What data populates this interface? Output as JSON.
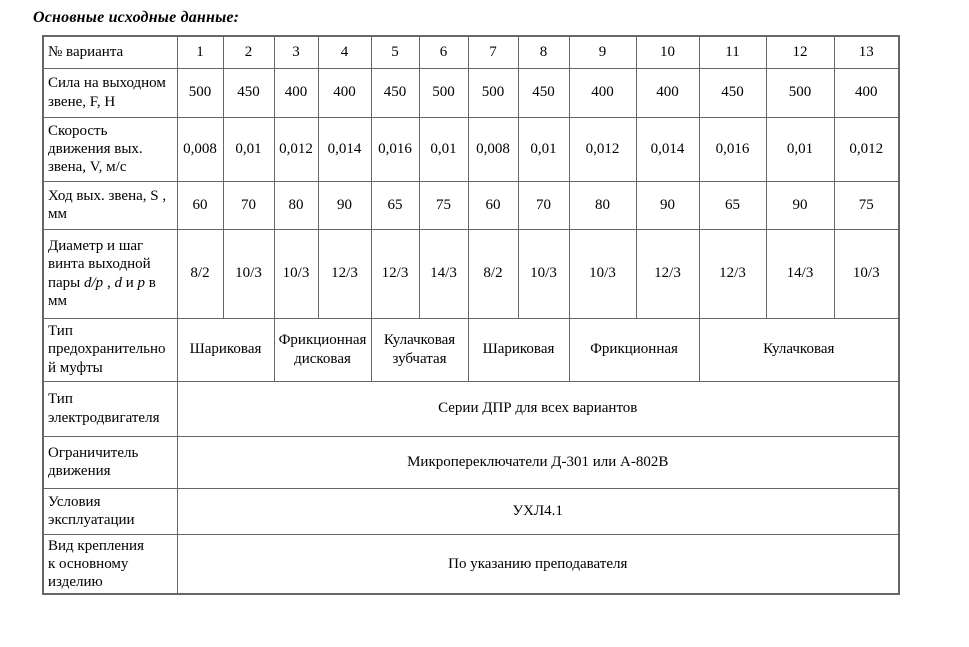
{
  "page": {
    "title": "Основные исходные данные:"
  },
  "table": {
    "rows": [
      {
        "label": "№ варианта",
        "cells": [
          {
            "text": "1"
          },
          {
            "text": "2"
          },
          {
            "text": "3"
          },
          {
            "text": "4"
          },
          {
            "text": "5"
          },
          {
            "text": "6"
          },
          {
            "text": "7"
          },
          {
            "text": "8"
          },
          {
            "text": "9"
          },
          {
            "text": "10"
          },
          {
            "text": "11"
          },
          {
            "text": "12"
          },
          {
            "text": "13"
          }
        ]
      },
      {
        "label": "Сила на выходном\nзвене, F, Н",
        "cells": [
          {
            "text": "500"
          },
          {
            "text": "450"
          },
          {
            "text": "400"
          },
          {
            "text": "400"
          },
          {
            "text": "450"
          },
          {
            "text": "500"
          },
          {
            "text": "500"
          },
          {
            "text": "450"
          },
          {
            "text": "400"
          },
          {
            "text": "400"
          },
          {
            "text": "450"
          },
          {
            "text": "500"
          },
          {
            "text": "400"
          }
        ]
      },
      {
        "label": "Скорость\nдвижения вых.\nзвена, V, м/с",
        "cells": [
          {
            "text": "0,008"
          },
          {
            "text": "0,01"
          },
          {
            "text": "0,012"
          },
          {
            "text": "0,014"
          },
          {
            "text": "0,016"
          },
          {
            "text": "0,01"
          },
          {
            "text": "0,008"
          },
          {
            "text": "0,01"
          },
          {
            "text": "0,012"
          },
          {
            "text": "0,014"
          },
          {
            "text": "0,016"
          },
          {
            "text": "0,01"
          },
          {
            "text": "0,012"
          }
        ]
      },
      {
        "label": "Ход вых. звена, S ,\nмм",
        "cells": [
          {
            "text": "60"
          },
          {
            "text": "70"
          },
          {
            "text": "80"
          },
          {
            "text": "90"
          },
          {
            "text": "65"
          },
          {
            "text": "75"
          },
          {
            "text": "60"
          },
          {
            "text": "70"
          },
          {
            "text": "80"
          },
          {
            "text": "90"
          },
          {
            "text": "65"
          },
          {
            "text": "90"
          },
          {
            "text": "75"
          }
        ]
      },
      {
        "label_parts": [
          {
            "text": "Диаметр и шаг\nвинта выходной\nпары ",
            "italic": false
          },
          {
            "text": "d/p",
            "italic": true
          },
          {
            "text": " , ",
            "italic": false
          },
          {
            "text": "d",
            "italic": true
          },
          {
            "text": " и ",
            "italic": false
          },
          {
            "text": "p",
            "italic": true
          },
          {
            "text": " в\nмм",
            "italic": false
          }
        ],
        "cells": [
          {
            "text": "8/2"
          },
          {
            "text": "10/3"
          },
          {
            "text": "10/3"
          },
          {
            "text": "12/3"
          },
          {
            "text": "12/3"
          },
          {
            "text": "14/3"
          },
          {
            "text": "8/2"
          },
          {
            "text": "10/3"
          },
          {
            "text": "10/3"
          },
          {
            "text": "12/3"
          },
          {
            "text": "12/3"
          },
          {
            "text": "14/3"
          },
          {
            "text": "10/3"
          }
        ]
      },
      {
        "label": "Тип\nпредохранительно\nй муфты",
        "cells": [
          {
            "text": "Шариковая",
            "span": 2
          },
          {
            "text": "Фрикционная\nдисковая",
            "span": 2
          },
          {
            "text": "Кулачковая\nзубчатая",
            "span": 2
          },
          {
            "text": "Шариковая",
            "span": 2
          },
          {
            "text": "Фрикционная",
            "span": 2
          },
          {
            "text": "Кулачковая",
            "span": 3
          }
        ]
      },
      {
        "label": "Тип\nэлектродвигателя",
        "cells": [
          {
            "text": "Серии ДПР для всех вариантов",
            "span": 13
          }
        ]
      },
      {
        "label": "Ограничитель\nдвижения",
        "cells": [
          {
            "text": "Микропереключатели Д-301 или А-802В",
            "span": 13
          }
        ]
      },
      {
        "label": "Условия\nэксплуатации",
        "cells": [
          {
            "text": "УХЛ4.1",
            "span": 13
          }
        ]
      },
      {
        "label": "Вид крепления\nк основному\nизделию",
        "cells": [
          {
            "text": "По указанию преподавателя",
            "span": 13
          }
        ]
      }
    ]
  }
}
